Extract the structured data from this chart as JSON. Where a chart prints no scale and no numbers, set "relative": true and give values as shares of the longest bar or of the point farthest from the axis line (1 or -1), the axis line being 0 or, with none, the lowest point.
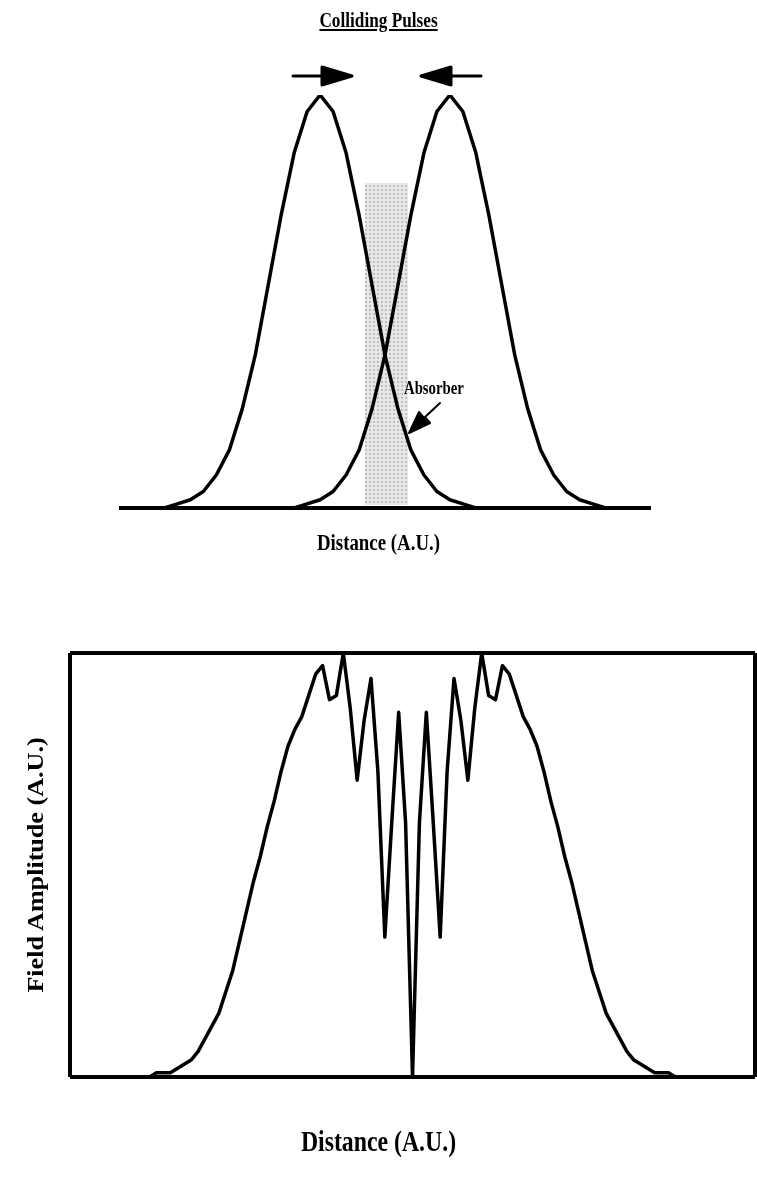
{
  "chart_data": [
    {
      "type": "line",
      "title": "Colliding Pulses",
      "xlabel": "Distance (A.U.)",
      "relative": true,
      "legend": false,
      "marker": "none",
      "line_style": "solid",
      "categories": [
        null,
        null,
        null,
        null,
        null,
        null,
        null,
        null,
        null,
        null,
        null,
        null,
        null,
        null,
        null,
        null,
        null,
        null,
        null,
        null,
        null,
        null,
        null,
        null,
        null,
        null,
        null,
        null,
        null,
        null,
        null,
        null,
        null,
        null,
        null,
        null,
        null,
        null,
        null,
        null,
        null
      ],
      "series": [
        {
          "color": "#000000",
          "values": [
            0,
            0,
            0,
            0,
            0.01,
            0.02,
            0.04,
            0.08,
            0.14,
            0.24,
            0.37,
            0.54,
            0.71,
            0.86,
            0.96,
            1,
            0.96,
            0.86,
            0.71,
            0.54,
            0.37,
            0.24,
            0.14,
            0.08,
            0.04,
            0.02,
            0.01,
            0,
            0,
            0,
            0,
            0,
            0,
            0,
            0,
            0,
            0,
            0,
            0,
            0,
            0
          ]
        },
        {
          "color": "#000000",
          "values": [
            0,
            0,
            0,
            0,
            0,
            0,
            0,
            0,
            0,
            0,
            0,
            0,
            0,
            0,
            0.01,
            0.02,
            0.04,
            0.08,
            0.14,
            0.24,
            0.37,
            0.54,
            0.71,
            0.86,
            0.96,
            1,
            0.96,
            0.86,
            0.71,
            0.54,
            0.37,
            0.24,
            0.14,
            0.08,
            0.04,
            0.02,
            0.01,
            0,
            0,
            0,
            0
          ]
        }
      ],
      "annotations": [
        "Absorber"
      ]
    },
    {
      "type": "line",
      "xlabel": "Distance (A.U.)",
      "ylabel": "Field Amplitude (A.U.)",
      "relative": true,
      "legend": false,
      "marker": "none",
      "line_style": "solid",
      "color": "#000000",
      "categories": [
        null,
        null,
        null,
        null,
        null,
        null,
        null,
        null,
        null,
        null,
        null,
        null,
        null,
        null,
        null,
        null,
        null,
        null,
        null,
        null,
        null,
        null,
        null,
        null,
        null,
        null,
        null,
        null,
        null,
        null,
        null,
        null,
        null,
        null,
        null,
        null,
        null,
        null,
        null,
        null,
        null,
        null,
        null,
        null,
        null,
        null,
        null,
        null,
        null,
        null,
        null,
        null,
        null,
        null,
        null,
        null,
        null,
        null,
        null,
        null,
        null,
        null,
        null,
        null,
        null,
        null,
        null,
        null,
        null,
        null,
        null,
        null,
        null,
        null,
        null,
        null,
        null,
        null,
        null,
        null,
        null,
        null,
        null,
        null,
        null,
        null,
        null,
        null,
        null,
        null,
        null,
        null,
        null,
        null,
        null,
        null,
        null,
        null,
        null
      ],
      "values": [
        0,
        0,
        0,
        0,
        0,
        0,
        0,
        0,
        0,
        0,
        0,
        0,
        0.01,
        0.01,
        0.01,
        0.02,
        0.03,
        0.04,
        0.06,
        0.09,
        0.12,
        0.15,
        0.2,
        0.25,
        0.32,
        0.39,
        0.46,
        0.52,
        0.59,
        0.65,
        0.72,
        0.78,
        0.82,
        0.85,
        0.9,
        0.95,
        0.97,
        0.89,
        0.9,
        1,
        0.87,
        0.7,
        0.84,
        0.94,
        0.72,
        0.33,
        0.6,
        0.86,
        0.6,
        0,
        0.6,
        0.86,
        0.6,
        0.33,
        0.72,
        0.94,
        0.84,
        0.7,
        0.87,
        1,
        0.9,
        0.89,
        0.97,
        0.95,
        0.9,
        0.85,
        0.82,
        0.78,
        0.72,
        0.65,
        0.59,
        0.52,
        0.46,
        0.39,
        0.32,
        0.25,
        0.2,
        0.15,
        0.12,
        0.09,
        0.06,
        0.04,
        0.03,
        0.02,
        0.01,
        0.01,
        0.01,
        0,
        0,
        0,
        0,
        0,
        0,
        0,
        0,
        0,
        0,
        0,
        0
      ]
    }
  ]
}
